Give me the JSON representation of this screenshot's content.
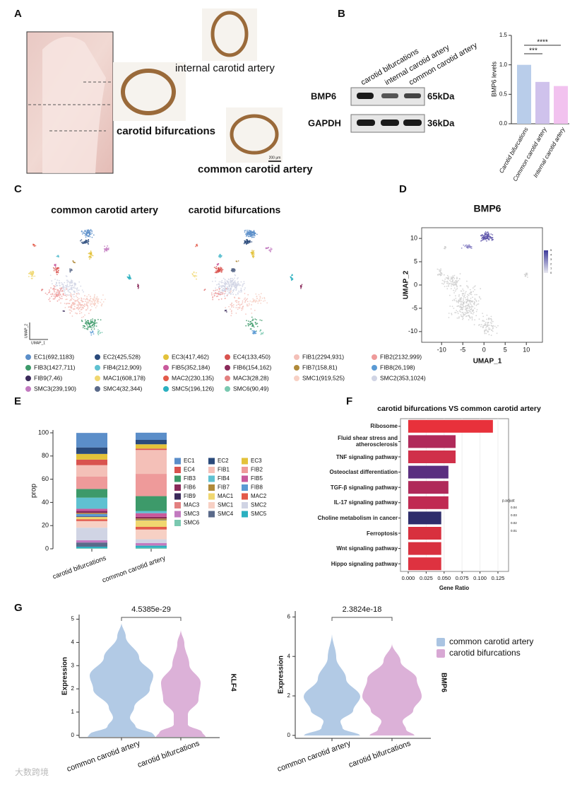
{
  "panel_labels": [
    "A",
    "B",
    "C",
    "D",
    "E",
    "F",
    "G"
  ],
  "panel_a": {
    "labels": [
      "internal carotid artery",
      "carotid bifurcations",
      "common carotid artery"
    ],
    "scale_bar": "200 μm"
  },
  "panel_b_blot": {
    "lanes": [
      "carotid bifurcations",
      "internal carotid artery",
      "common carotid artery"
    ],
    "proteins": [
      "BMP6",
      "GAPDH"
    ],
    "sizes": [
      "65kDa",
      "36kDa"
    ]
  },
  "panel_c": {
    "titles": [
      "common carotid artery",
      "carotid bifurcations"
    ],
    "axis_labels": [
      "UMAP_2",
      "UMAP_1"
    ],
    "clusters": [
      "EC1(692,1183)",
      "EC2(425,528)",
      "EC3(417,462)",
      "EC4(133,450)",
      "FIB1(2294,931)",
      "FIB2(2132,999)",
      "FIB3(1427,711)",
      "FIB4(212,909)",
      "FIB5(352,184)",
      "FIB6(154,162)",
      "FIB7(158,81)",
      "FIB8(26,198)",
      "FIB9(7,46)",
      "MAC1(608,178)",
      "MAC2(230,135)",
      "MAC3(28,28)",
      "SMC1(919,525)",
      "SMC2(353,1024)",
      "SMC3(239,190)",
      "SMC4(32,344)",
      "SMC5(196,126)",
      "SMC6(90,49)"
    ]
  },
  "panel_d": {
    "title": "BMP6",
    "xlabel": "UMAP_1",
    "ylabel": "UMAP_2",
    "xlim": [
      -14.7,
      13.8
    ],
    "ylim": [
      -12.3,
      12.3
    ],
    "xticks": [
      -10,
      -5,
      0,
      5,
      10
    ],
    "yticks": [
      10,
      5,
      0,
      -5,
      -10
    ],
    "colorbar_ticks": [
      5,
      4,
      3,
      2,
      1,
      0
    ]
  },
  "watermark": "大数跨境",
  "chart_data": [
    {
      "type": "bar",
      "ylabel": "BMP6 levels",
      "categories": [
        "Carotid bifurcations",
        "Common carotid artery",
        "Internal carotid artery"
      ],
      "values": [
        1.0,
        0.71,
        0.64
      ],
      "colors": [
        "#b9cdea",
        "#cfc2ec",
        "#f2c2ef"
      ],
      "ylim": [
        0,
        1.5
      ],
      "yticks": [
        {
          "value": 0,
          "label": "0.0"
        },
        0.5,
        {
          "value": 1,
          "label": "1.0"
        },
        1.5
      ],
      "annotations": [
        "***",
        "****"
      ]
    },
    {
      "type": "stacked_bar",
      "ylabel": "prop",
      "categories": [
        "carotid bifurcations",
        "common carotid artery"
      ],
      "ylim": [
        0,
        100
      ],
      "yticks": [
        0,
        20,
        40,
        60,
        80,
        100
      ],
      "series": [
        {
          "name": "EC1",
          "color": "#5b8ec9",
          "values": [
            12.5,
            6.2
          ]
        },
        {
          "name": "EC2",
          "color": "#2a4a7b",
          "values": [
            5.6,
            3.8
          ]
        },
        {
          "name": "EC3",
          "color": "#e3c23a",
          "values": [
            4.9,
            3.7
          ]
        },
        {
          "name": "EC4",
          "color": "#d9534f",
          "values": [
            4.8,
            1.2
          ]
        },
        {
          "name": "FIB1",
          "color": "#f4c0b8",
          "values": [
            9.9,
            20.6
          ]
        },
        {
          "name": "FIB2",
          "color": "#ee9a9a",
          "values": [
            10.6,
            19.2
          ]
        },
        {
          "name": "FIB3",
          "color": "#3d9a6a",
          "values": [
            7.5,
            12.8
          ]
        },
        {
          "name": "FIB4",
          "color": "#5fc1d1",
          "values": [
            9.6,
            1.9
          ]
        },
        {
          "name": "FIB5",
          "color": "#c95a9c",
          "values": [
            1.9,
            3.2
          ]
        },
        {
          "name": "FIB6",
          "color": "#8a2a5a",
          "values": [
            1.7,
            1.4
          ]
        },
        {
          "name": "FIB7",
          "color": "#b08a3a",
          "values": [
            0.9,
            1.4
          ]
        },
        {
          "name": "FIB8",
          "color": "#5a9ad4",
          "values": [
            2.1,
            0.2
          ]
        },
        {
          "name": "FIB9",
          "color": "#3a2a5a",
          "values": [
            0.5,
            0.1
          ]
        },
        {
          "name": "MAC1",
          "color": "#f0d770",
          "values": [
            1.9,
            5.5
          ]
        },
        {
          "name": "MAC2",
          "color": "#e35a4a",
          "values": [
            1.4,
            2.1
          ]
        },
        {
          "name": "MAC3",
          "color": "#e38080",
          "values": [
            0.3,
            0.3
          ]
        },
        {
          "name": "SMC1",
          "color": "#f7d0c4",
          "values": [
            5.6,
            8.3
          ]
        },
        {
          "name": "SMC2",
          "color": "#d0d4e4",
          "values": [
            10.8,
            3.2
          ]
        },
        {
          "name": "SMC3",
          "color": "#c27ac0",
          "values": [
            2.0,
            2.1
          ]
        },
        {
          "name": "SMC4",
          "color": "#5a6a8a",
          "values": [
            3.6,
            0.3
          ]
        },
        {
          "name": "SMC5",
          "color": "#2bb0c0",
          "values": [
            1.3,
            1.8
          ]
        },
        {
          "name": "SMC6",
          "color": "#7ac8b0",
          "values": [
            0.5,
            0.8
          ]
        }
      ]
    },
    {
      "type": "hbar",
      "title": "carotid bifurcations VS common carotid artery",
      "xlabel": "Gene Ratio",
      "categories": [
        "Ribosome",
        "Fluid shear stress and atherosclerosis",
        "TNF signaling pathway",
        "Osteoclast differentiation",
        "TGF-β signaling pathway",
        "IL-17 signaling pathway",
        "Choline metabolism in cancer",
        "Ferroptosis",
        "Wnt signaling pathway",
        "Hippo signaling pathway"
      ],
      "values": [
        0.118,
        0.066,
        0.066,
        0.056,
        0.056,
        0.056,
        0.046,
        0.046,
        0.046,
        0.046
      ],
      "colors": [
        "#e8313b",
        "#b02a5a",
        "#d0304a",
        "#5a2f80",
        "#b02a5a",
        "#c02a52",
        "#2e2d6b",
        "#d8303e",
        "#d8303e",
        "#de3240"
      ],
      "xlim": [
        -0.0108,
        0.1398
      ],
      "xticks": [
        {
          "value": 0,
          "label": "0.000"
        },
        0.025,
        {
          "value": 0.05,
          "label": "0.050"
        },
        0.075,
        {
          "value": 0.1,
          "label": "0.100"
        },
        0.125
      ],
      "colorbar": {
        "title": "p.adjust",
        "ticks": [
          0.04,
          0.03,
          0.02,
          0.01
        ]
      }
    },
    {
      "type": "violin",
      "ylabel": "Expression",
      "feature": "KLF4",
      "p_value": "4.5385e-29",
      "categories": [
        "common carotid artery",
        "carotid bifurcations"
      ],
      "colors": [
        "#aac4e2",
        "#d8a8d4"
      ],
      "ylim": [
        -0.1,
        5.2
      ],
      "yticks": [
        0,
        1,
        2,
        3,
        4,
        5
      ]
    },
    {
      "type": "violin",
      "ylabel": "Expression",
      "feature": "BMP6",
      "p_value": "2.3824e-18",
      "categories": [
        "common carotid artery",
        "carotid bifurcations"
      ],
      "colors": [
        "#aac4e2",
        "#d8a8d4"
      ],
      "ylim": [
        -0.15,
        6.3
      ],
      "yticks": [
        0,
        2,
        4,
        6
      ],
      "legend": {
        "names": [
          "common carotid artery",
          "carotid bifurcations"
        ],
        "colors": [
          "#aac4e2",
          "#d8a8d4"
        ]
      }
    }
  ]
}
